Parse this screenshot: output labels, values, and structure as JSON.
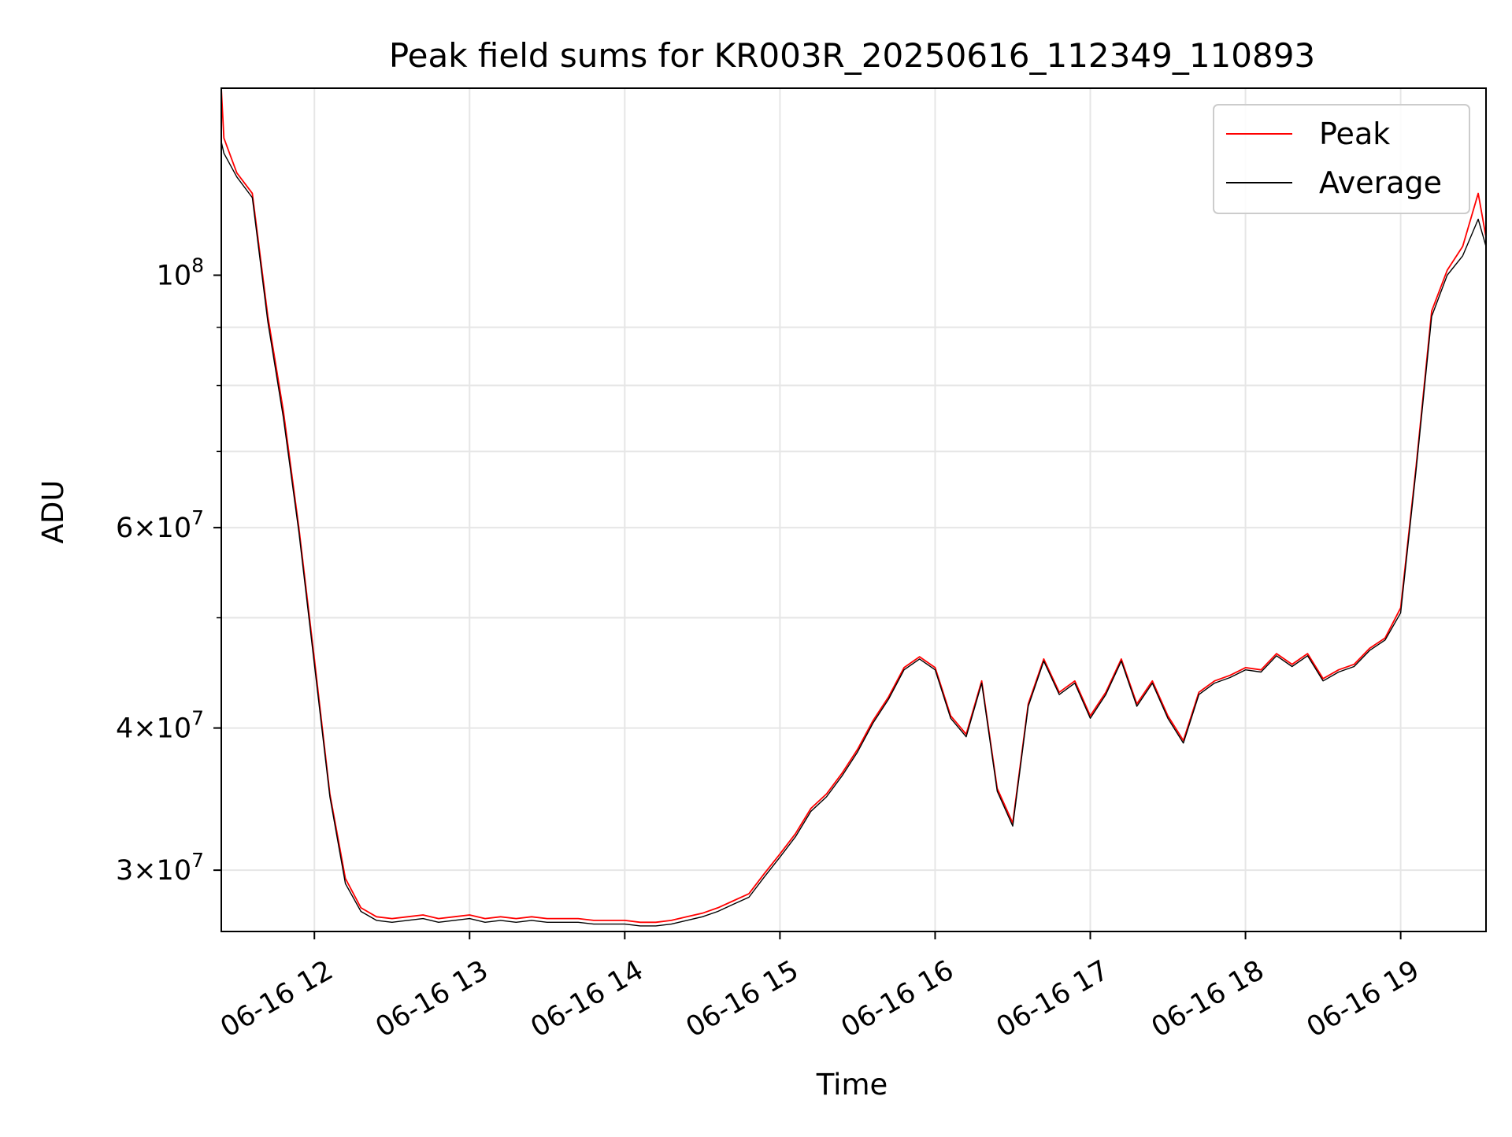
{
  "chart_data": {
    "type": "line",
    "title": "Peak field sums for KR003R_20250616_112349_110893",
    "xlabel": "Time",
    "ylabel": "ADU",
    "x_ticks": [
      "06-16 12",
      "06-16 13",
      "06-16 14",
      "06-16 15",
      "06-16 16",
      "06-16 17",
      "06-16 18",
      "06-16 19"
    ],
    "y_tick_labels": [
      {
        "value": 30000000,
        "mantissa": "3",
        "exp": "7"
      },
      {
        "value": 40000000,
        "mantissa": "4",
        "exp": "7"
      },
      {
        "value": 60000000,
        "mantissa": "6",
        "exp": "7"
      },
      {
        "value": 100000000,
        "mantissa": "",
        "exp": "8"
      }
    ],
    "y_scale": "log",
    "xlim": [
      "06-16 11:24",
      "06-16 19:33"
    ],
    "ylim": [
      26500000,
      146000000
    ],
    "grid": true,
    "legend_position": "upper right",
    "colors": {
      "peak": "#ff0000",
      "average": "#000000",
      "grid": "#e6e6e6"
    },
    "series": [
      {
        "name": "Peak",
        "color": "#ff0000",
        "x": [
          "11:24",
          "11:25",
          "11:30",
          "11:36",
          "11:42",
          "11:48",
          "11:54",
          "12:00",
          "12:06",
          "12:12",
          "12:18",
          "12:24",
          "12:30",
          "12:36",
          "12:42",
          "12:48",
          "12:54",
          "13:00",
          "13:06",
          "13:12",
          "13:18",
          "13:24",
          "13:30",
          "13:36",
          "13:42",
          "13:48",
          "13:54",
          "14:00",
          "14:06",
          "14:12",
          "14:18",
          "14:24",
          "14:30",
          "14:36",
          "14:42",
          "14:48",
          "14:54",
          "15:00",
          "15:06",
          "15:12",
          "15:18",
          "15:24",
          "15:30",
          "15:36",
          "15:42",
          "15:48",
          "15:54",
          "16:00",
          "16:06",
          "16:12",
          "16:18",
          "16:24",
          "16:30",
          "16:36",
          "16:42",
          "16:48",
          "16:54",
          "17:00",
          "17:06",
          "17:12",
          "17:18",
          "17:24",
          "17:30",
          "17:36",
          "17:42",
          "17:48",
          "17:54",
          "18:00",
          "18:06",
          "18:12",
          "18:18",
          "18:24",
          "18:30",
          "18:36",
          "18:42",
          "18:48",
          "18:54",
          "19:00",
          "19:06",
          "19:12",
          "19:18",
          "19:24",
          "19:30",
          "19:33"
        ],
        "y": [
          146000000,
          132000000,
          123000000,
          118000000,
          92000000,
          76000000,
          60000000,
          46000000,
          35000000,
          29500000,
          27800000,
          27300000,
          27200000,
          27300000,
          27400000,
          27200000,
          27300000,
          27400000,
          27200000,
          27300000,
          27200000,
          27300000,
          27200000,
          27200000,
          27200000,
          27100000,
          27100000,
          27100000,
          27000000,
          27000000,
          27100000,
          27300000,
          27500000,
          27800000,
          28200000,
          28600000,
          29800000,
          31000000,
          32300000,
          34000000,
          35000000,
          36500000,
          38300000,
          40600000,
          42600000,
          45200000,
          46200000,
          45200000,
          41000000,
          39500000,
          44000000,
          35400000,
          33000000,
          42000000,
          46000000,
          43000000,
          44000000,
          41000000,
          43000000,
          46000000,
          42000000,
          44000000,
          41000000,
          39000000,
          43000000,
          44000000,
          44500000,
          45200000,
          45000000,
          46500000,
          45500000,
          46500000,
          44200000,
          45000000,
          45500000,
          47000000,
          48000000,
          51000000,
          68000000,
          93000000,
          101000000,
          106000000,
          118000000,
          108000000
        ]
      },
      {
        "name": "Average",
        "color": "#000000",
        "x": [
          "11:24",
          "11:25",
          "11:30",
          "11:36",
          "11:42",
          "11:48",
          "11:54",
          "12:00",
          "12:06",
          "12:12",
          "12:18",
          "12:24",
          "12:30",
          "12:36",
          "12:42",
          "12:48",
          "12:54",
          "13:00",
          "13:06",
          "13:12",
          "13:18",
          "13:24",
          "13:30",
          "13:36",
          "13:42",
          "13:48",
          "13:54",
          "14:00",
          "14:06",
          "14:12",
          "14:18",
          "14:24",
          "14:30",
          "14:36",
          "14:42",
          "14:48",
          "14:54",
          "15:00",
          "15:06",
          "15:12",
          "15:18",
          "15:24",
          "15:30",
          "15:36",
          "15:42",
          "15:48",
          "15:54",
          "16:00",
          "16:06",
          "16:12",
          "16:18",
          "16:24",
          "16:30",
          "16:36",
          "16:42",
          "16:48",
          "16:54",
          "17:00",
          "17:06",
          "17:12",
          "17:18",
          "17:24",
          "17:30",
          "17:36",
          "17:42",
          "17:48",
          "17:54",
          "18:00",
          "18:06",
          "18:12",
          "18:18",
          "18:24",
          "18:30",
          "18:36",
          "18:42",
          "18:48",
          "18:54",
          "19:00",
          "19:06",
          "19:12",
          "19:18",
          "19:24",
          "19:30",
          "19:33"
        ],
        "y": [
          131000000,
          128000000,
          122000000,
          117000000,
          91000000,
          75000000,
          59500000,
          45500000,
          34800000,
          29200000,
          27600000,
          27100000,
          27000000,
          27100000,
          27200000,
          27000000,
          27100000,
          27200000,
          27000000,
          27100000,
          27000000,
          27100000,
          27000000,
          27000000,
          27000000,
          26900000,
          26900000,
          26900000,
          26800000,
          26800000,
          26900000,
          27100000,
          27300000,
          27600000,
          28000000,
          28400000,
          29600000,
          30800000,
          32100000,
          33800000,
          34800000,
          36300000,
          38100000,
          40400000,
          42400000,
          45000000,
          46000000,
          45000000,
          40800000,
          39300000,
          43800000,
          35200000,
          32800000,
          41800000,
          45800000,
          42800000,
          43800000,
          40800000,
          42800000,
          45800000,
          41800000,
          43800000,
          40800000,
          38800000,
          42800000,
          43800000,
          44300000,
          45000000,
          44800000,
          46300000,
          45300000,
          46300000,
          44000000,
          44800000,
          45300000,
          46800000,
          47800000,
          50500000,
          67500000,
          92000000,
          100000000,
          104000000,
          112000000,
          106000000
        ]
      }
    ]
  }
}
